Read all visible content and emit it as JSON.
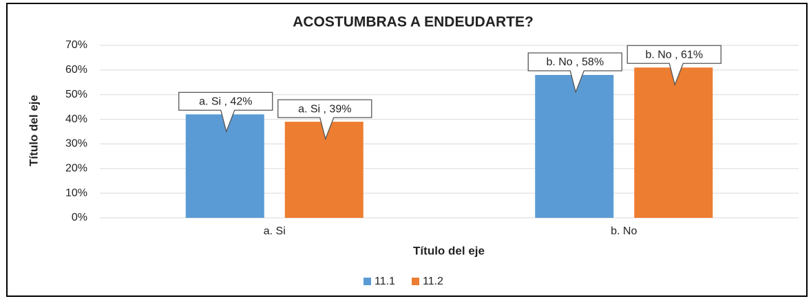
{
  "chart_data": {
    "type": "bar",
    "title": "ACOSTUMBRAS A ENDEUDARTE?",
    "x_label": "Título del eje",
    "y_label": "Título del eje",
    "categories": [
      "a. Si",
      "b. No"
    ],
    "series": [
      {
        "name": "11.1",
        "color": "#5b9bd5",
        "values": [
          42,
          58
        ],
        "value_labels": [
          "a. Si , 42%",
          "b. No , 58%"
        ]
      },
      {
        "name": "11.2",
        "color": "#ed7d31",
        "values": [
          39,
          61
        ],
        "value_labels": [
          "a. Si , 39%",
          "b. No , 61%"
        ]
      }
    ],
    "ylim": [
      0,
      70
    ],
    "yticks": [
      {
        "value": 0,
        "label": "0%"
      },
      {
        "value": 10,
        "label": "10%"
      },
      {
        "value": 20,
        "label": "20%"
      },
      {
        "value": 30,
        "label": "30%"
      },
      {
        "value": 40,
        "label": "40%"
      },
      {
        "value": 50,
        "label": "50%"
      },
      {
        "value": 60,
        "label": "60%"
      },
      {
        "value": 70,
        "label": "70%"
      }
    ],
    "grid": true,
    "legend": "bottom"
  }
}
